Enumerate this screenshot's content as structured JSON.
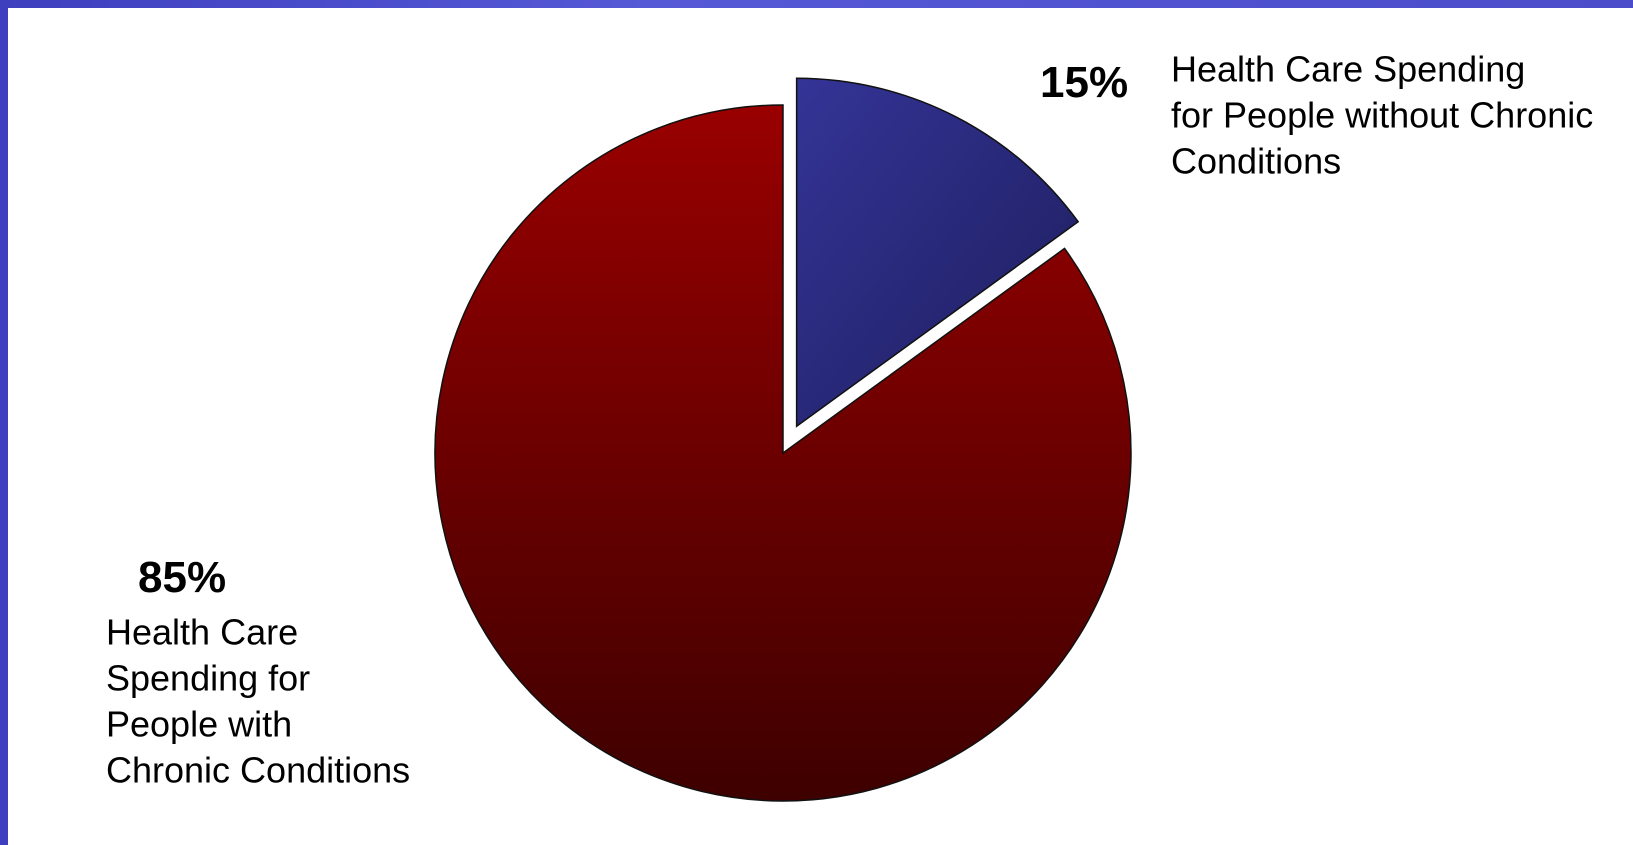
{
  "chart_data": {
    "type": "pie",
    "slices": [
      {
        "name": "Health Care Spending for People without Chronic Conditions",
        "value": 15,
        "percent_label": "15%",
        "label_lines": [
          "Health Care Spending",
          "for People without Chronic",
          "Conditions"
        ],
        "color": "#2b2d8a",
        "exploded": true
      },
      {
        "name": "Health Care Spending for People with Chronic Conditions",
        "value": 85,
        "percent_label": "85%",
        "label_lines": [
          "Health Care",
          "Spending for",
          "People with",
          "Chronic Conditions"
        ],
        "color": "#8a0000",
        "exploded": false
      }
    ],
    "legend": "none"
  }
}
